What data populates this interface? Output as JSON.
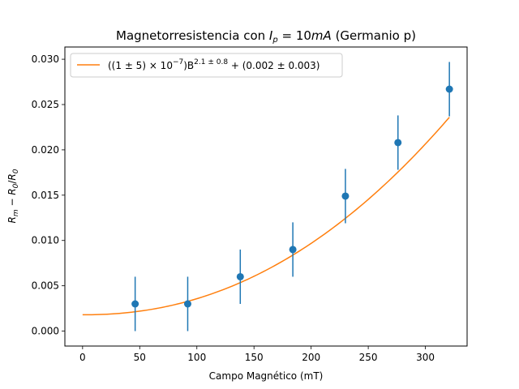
{
  "chart_data": {
    "type": "scatter",
    "title": "Magnetorresistencia con I_p = 10mA (Germanio p)",
    "title_parts": {
      "prefix": "Magnetorresistencia con ",
      "var": "I",
      "sub": "p",
      "eq": " = 10",
      "unit": "mA",
      "suffix": " (Germanio p)"
    },
    "xlabel": "Campo Magnético (mT)",
    "ylabel": "R_m − R_0/R_0",
    "ylabel_parts": {
      "a": "R",
      "a_sub": "m",
      "mid": " − ",
      "b": "R",
      "b_sub": "0",
      "slash": "/",
      "c": "R",
      "c_sub": "0"
    },
    "xlim": [
      -15.5,
      336.5
    ],
    "ylim": [
      -0.00165,
      0.03135
    ],
    "x_ticks": [
      0,
      50,
      100,
      150,
      200,
      250,
      300
    ],
    "y_ticks": [
      0.0,
      0.005,
      0.01,
      0.015,
      0.02,
      0.025,
      0.03
    ],
    "y_tick_labels": [
      "0.000",
      "0.005",
      "0.010",
      "0.015",
      "0.020",
      "0.025",
      "0.030"
    ],
    "grid": false,
    "legend_position": "upper-left",
    "series": [
      {
        "kind": "errorbar",
        "color": "#1f77b4",
        "x": [
          46,
          92,
          138,
          184,
          230,
          276,
          321
        ],
        "y": [
          0.003,
          0.003,
          0.006,
          0.009,
          0.0149,
          0.0208,
          0.0267
        ],
        "yerr": [
          0.003,
          0.003,
          0.003,
          0.003,
          0.003,
          0.003,
          0.003
        ]
      },
      {
        "kind": "line",
        "name": "((1 ± 5) × 10^−7) B^(2.1 ± 0.8) + (0.002 ± 0.003)",
        "legend_parts": {
          "a": "((1 ± 5) × 10",
          "a_sup": "−7",
          "b": ")B",
          "b_sup": "2.1 ± 0.8",
          "c": " + (0.002 ± 0.003)"
        },
        "color": "#ff7f0e",
        "model": {
          "a": 8.9e-08,
          "b": 2.15,
          "c": 0.0018
        },
        "x_range": [
          0,
          321
        ]
      }
    ]
  }
}
